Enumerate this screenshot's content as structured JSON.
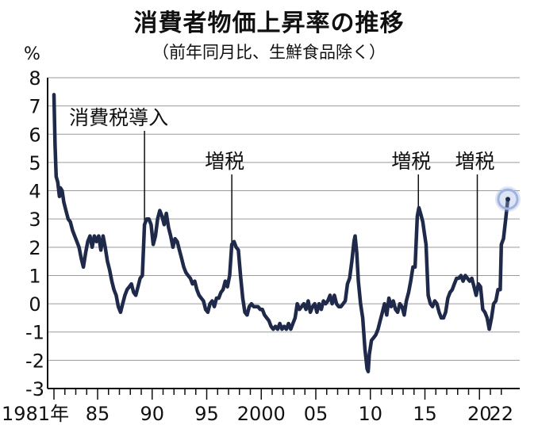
{
  "chart_data": {
    "type": "line",
    "title": "消費者物価上昇率の推移",
    "subtitle": "（前年同月比、生鮮食品除く）",
    "unit": "%",
    "ylim": [
      -3,
      8
    ],
    "yticks": [
      8,
      7,
      6,
      5,
      4,
      3,
      2,
      1,
      0,
      -1,
      -2,
      -3
    ],
    "xlim": [
      1981,
      2022.6
    ],
    "xtick_labels": [
      {
        "x": 1981,
        "label": "1981年"
      },
      {
        "x": 1985,
        "label": "85"
      },
      {
        "x": 1990,
        "label": "90"
      },
      {
        "x": 1995,
        "label": "95"
      },
      {
        "x": 2000,
        "label": "2000"
      },
      {
        "x": 2005,
        "label": "05"
      },
      {
        "x": 2010,
        "label": "10"
      },
      {
        "x": 2015,
        "label": "15"
      },
      {
        "x": 2020,
        "label": "20"
      },
      {
        "x": 2022,
        "label": "22"
      }
    ],
    "grid": true,
    "line_color": "#1f2a4a",
    "highlight_color": "#9fb2e0",
    "annotations": [
      {
        "label": "消費税導入",
        "x": 1989.3
      },
      {
        "label": "増税",
        "x": 1997.3
      },
      {
        "label": "増税",
        "x": 2014.4
      },
      {
        "label": "増税",
        "x": 2019.8
      }
    ],
    "series": [
      {
        "points": [
          [
            1981.0,
            7.4
          ],
          [
            1981.1,
            5.6
          ],
          [
            1981.2,
            4.5
          ],
          [
            1981.35,
            4.3
          ],
          [
            1981.5,
            3.8
          ],
          [
            1981.6,
            4.1
          ],
          [
            1981.75,
            4.0
          ],
          [
            1981.9,
            3.6
          ],
          [
            1982.1,
            3.3
          ],
          [
            1982.3,
            3.0
          ],
          [
            1982.5,
            2.9
          ],
          [
            1982.7,
            2.6
          ],
          [
            1982.9,
            2.4
          ],
          [
            1983.1,
            2.2
          ],
          [
            1983.3,
            2.0
          ],
          [
            1983.5,
            1.6
          ],
          [
            1983.7,
            1.3
          ],
          [
            1983.9,
            1.8
          ],
          [
            1984.1,
            2.2
          ],
          [
            1984.3,
            2.4
          ],
          [
            1984.5,
            2.0
          ],
          [
            1984.7,
            2.4
          ],
          [
            1984.9,
            2.2
          ],
          [
            1985.1,
            2.4
          ],
          [
            1985.3,
            1.9
          ],
          [
            1985.5,
            2.4
          ],
          [
            1985.7,
            2.0
          ],
          [
            1985.9,
            1.5
          ],
          [
            1986.1,
            1.2
          ],
          [
            1986.3,
            0.8
          ],
          [
            1986.5,
            0.5
          ],
          [
            1986.7,
            0.3
          ],
          [
            1986.9,
            -0.1
          ],
          [
            1987.1,
            -0.3
          ],
          [
            1987.3,
            0.0
          ],
          [
            1987.5,
            0.3
          ],
          [
            1987.7,
            0.5
          ],
          [
            1987.9,
            0.6
          ],
          [
            1988.1,
            0.7
          ],
          [
            1988.3,
            0.4
          ],
          [
            1988.5,
            0.3
          ],
          [
            1988.7,
            0.6
          ],
          [
            1988.9,
            0.9
          ],
          [
            1989.1,
            1.0
          ],
          [
            1989.3,
            2.8
          ],
          [
            1989.5,
            3.0
          ],
          [
            1989.7,
            3.0
          ],
          [
            1989.9,
            2.8
          ],
          [
            1990.1,
            2.1
          ],
          [
            1990.3,
            2.4
          ],
          [
            1990.5,
            3.0
          ],
          [
            1990.7,
            3.3
          ],
          [
            1990.9,
            3.1
          ],
          [
            1991.1,
            2.8
          ],
          [
            1991.3,
            3.2
          ],
          [
            1991.5,
            2.7
          ],
          [
            1991.7,
            2.4
          ],
          [
            1991.9,
            2.0
          ],
          [
            1992.1,
            2.3
          ],
          [
            1992.3,
            2.2
          ],
          [
            1992.5,
            1.9
          ],
          [
            1992.7,
            1.6
          ],
          [
            1992.9,
            1.3
          ],
          [
            1993.1,
            1.1
          ],
          [
            1993.3,
            1.0
          ],
          [
            1993.5,
            0.9
          ],
          [
            1993.7,
            0.7
          ],
          [
            1993.9,
            0.8
          ],
          [
            1994.1,
            0.5
          ],
          [
            1994.3,
            0.3
          ],
          [
            1994.5,
            0.2
          ],
          [
            1994.7,
            0.1
          ],
          [
            1994.9,
            -0.2
          ],
          [
            1995.1,
            -0.3
          ],
          [
            1995.3,
            0.0
          ],
          [
            1995.5,
            0.1
          ],
          [
            1995.7,
            -0.1
          ],
          [
            1995.9,
            0.2
          ],
          [
            1996.1,
            0.2
          ],
          [
            1996.3,
            0.4
          ],
          [
            1996.5,
            0.5
          ],
          [
            1996.7,
            0.8
          ],
          [
            1996.9,
            0.6
          ],
          [
            1997.1,
            1.0
          ],
          [
            1997.3,
            2.1
          ],
          [
            1997.5,
            2.2
          ],
          [
            1997.7,
            2.0
          ],
          [
            1997.9,
            1.9
          ],
          [
            1998.1,
            1.0
          ],
          [
            1998.3,
            0.2
          ],
          [
            1998.5,
            -0.3
          ],
          [
            1998.7,
            -0.4
          ],
          [
            1998.9,
            -0.1
          ],
          [
            1999.1,
            0.0
          ],
          [
            1999.3,
            -0.1
          ],
          [
            1999.5,
            -0.1
          ],
          [
            1999.7,
            -0.1
          ],
          [
            1999.9,
            -0.2
          ],
          [
            2000.1,
            -0.2
          ],
          [
            2000.3,
            -0.4
          ],
          [
            2000.5,
            -0.5
          ],
          [
            2000.7,
            -0.6
          ],
          [
            2000.9,
            -0.8
          ],
          [
            2001.1,
            -0.9
          ],
          [
            2001.3,
            -0.8
          ],
          [
            2001.5,
            -0.9
          ],
          [
            2001.7,
            -0.7
          ],
          [
            2001.9,
            -0.9
          ],
          [
            2002.1,
            -0.8
          ],
          [
            2002.3,
            -0.9
          ],
          [
            2002.5,
            -0.7
          ],
          [
            2002.7,
            -0.9
          ],
          [
            2002.9,
            -0.7
          ],
          [
            2003.1,
            -0.5
          ],
          [
            2003.3,
            0.0
          ],
          [
            2003.5,
            -0.2
          ],
          [
            2003.7,
            -0.1
          ],
          [
            2003.9,
            0.0
          ],
          [
            2004.1,
            -0.2
          ],
          [
            2004.3,
            0.1
          ],
          [
            2004.5,
            -0.3
          ],
          [
            2004.7,
            -0.1
          ],
          [
            2004.9,
            0.0
          ],
          [
            2005.1,
            -0.3
          ],
          [
            2005.3,
            0.0
          ],
          [
            2005.5,
            -0.2
          ],
          [
            2005.7,
            0.1
          ],
          [
            2005.9,
            0.0
          ],
          [
            2006.1,
            0.1
          ],
          [
            2006.3,
            0.3
          ],
          [
            2006.5,
            0.0
          ],
          [
            2006.7,
            0.3
          ],
          [
            2006.9,
            0.0
          ],
          [
            2007.1,
            -0.1
          ],
          [
            2007.3,
            -0.1
          ],
          [
            2007.5,
            0.0
          ],
          [
            2007.7,
            0.1
          ],
          [
            2007.9,
            0.7
          ],
          [
            2008.1,
            0.9
          ],
          [
            2008.3,
            1.5
          ],
          [
            2008.5,
            2.2
          ],
          [
            2008.6,
            2.4
          ],
          [
            2008.75,
            1.8
          ],
          [
            2008.9,
            0.8
          ],
          [
            2009.1,
            0.0
          ],
          [
            2009.3,
            -0.5
          ],
          [
            2009.5,
            -1.6
          ],
          [
            2009.7,
            -2.3
          ],
          [
            2009.8,
            -2.4
          ],
          [
            2009.9,
            -1.8
          ],
          [
            2010.1,
            -1.3
          ],
          [
            2010.3,
            -1.2
          ],
          [
            2010.5,
            -1.1
          ],
          [
            2010.7,
            -0.9
          ],
          [
            2010.9,
            -0.6
          ],
          [
            2011.1,
            -0.3
          ],
          [
            2011.3,
            0.0
          ],
          [
            2011.5,
            -0.4
          ],
          [
            2011.7,
            0.2
          ],
          [
            2011.9,
            -0.1
          ],
          [
            2012.1,
            0.1
          ],
          [
            2012.3,
            -0.2
          ],
          [
            2012.5,
            -0.3
          ],
          [
            2012.7,
            0.0
          ],
          [
            2012.9,
            -0.1
          ],
          [
            2013.1,
            -0.4
          ],
          [
            2013.3,
            0.1
          ],
          [
            2013.5,
            0.4
          ],
          [
            2013.7,
            0.8
          ],
          [
            2013.9,
            1.3
          ],
          [
            2014.1,
            1.3
          ],
          [
            2014.3,
            3.1
          ],
          [
            2014.45,
            3.4
          ],
          [
            2014.6,
            3.2
          ],
          [
            2014.8,
            2.9
          ],
          [
            2014.95,
            2.5
          ],
          [
            2015.1,
            2.1
          ],
          [
            2015.3,
            0.3
          ],
          [
            2015.5,
            0.0
          ],
          [
            2015.7,
            -0.1
          ],
          [
            2015.9,
            0.1
          ],
          [
            2016.1,
            0.0
          ],
          [
            2016.3,
            -0.3
          ],
          [
            2016.5,
            -0.5
          ],
          [
            2016.7,
            -0.5
          ],
          [
            2016.9,
            -0.3
          ],
          [
            2017.1,
            0.2
          ],
          [
            2017.3,
            0.4
          ],
          [
            2017.5,
            0.5
          ],
          [
            2017.7,
            0.7
          ],
          [
            2017.9,
            0.9
          ],
          [
            2018.1,
            0.9
          ],
          [
            2018.3,
            1.0
          ],
          [
            2018.5,
            0.8
          ],
          [
            2018.7,
            1.0
          ],
          [
            2018.9,
            0.9
          ],
          [
            2019.1,
            0.8
          ],
          [
            2019.3,
            0.9
          ],
          [
            2019.5,
            0.6
          ],
          [
            2019.7,
            0.3
          ],
          [
            2019.9,
            0.7
          ],
          [
            2020.1,
            0.6
          ],
          [
            2020.3,
            -0.2
          ],
          [
            2020.5,
            -0.3
          ],
          [
            2020.7,
            -0.5
          ],
          [
            2020.9,
            -0.9
          ],
          [
            2021.1,
            -0.5
          ],
          [
            2021.3,
            0.0
          ],
          [
            2021.5,
            0.1
          ],
          [
            2021.7,
            0.5
          ],
          [
            2021.9,
            0.5
          ],
          [
            2022.0,
            2.1
          ],
          [
            2022.2,
            2.3
          ],
          [
            2022.4,
            3.0
          ],
          [
            2022.6,
            3.7
          ]
        ]
      }
    ]
  }
}
